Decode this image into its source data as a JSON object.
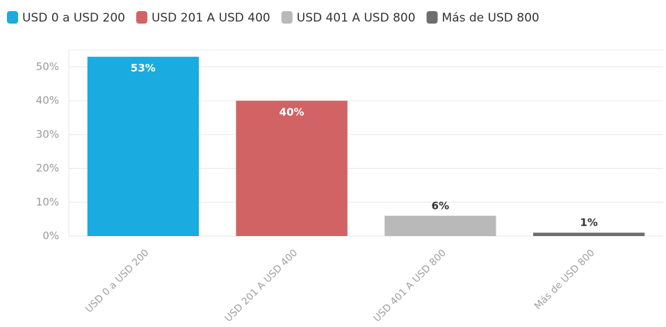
{
  "chart_data": {
    "type": "bar",
    "categories": [
      "USD 0 a USD 200",
      "USD 201 A USD 400",
      "USD 401 A USD 800",
      "Más de USD 800"
    ],
    "values": [
      53,
      40,
      6,
      1
    ],
    "value_labels": [
      "53%",
      "40%",
      "6%",
      "1%"
    ],
    "colors": [
      "#1aabe0",
      "#d16365",
      "#b9b9b9",
      "#6e6e6e"
    ],
    "ylim": [
      0,
      55
    ],
    "yticks": [
      {
        "value": 0,
        "label": "0%"
      },
      {
        "value": 10,
        "label": "10%"
      },
      {
        "value": 20,
        "label": "20%"
      },
      {
        "value": 30,
        "label": "30%"
      },
      {
        "value": 40,
        "label": "40%"
      },
      {
        "value": 50,
        "label": "50%"
      }
    ],
    "grid": true
  }
}
